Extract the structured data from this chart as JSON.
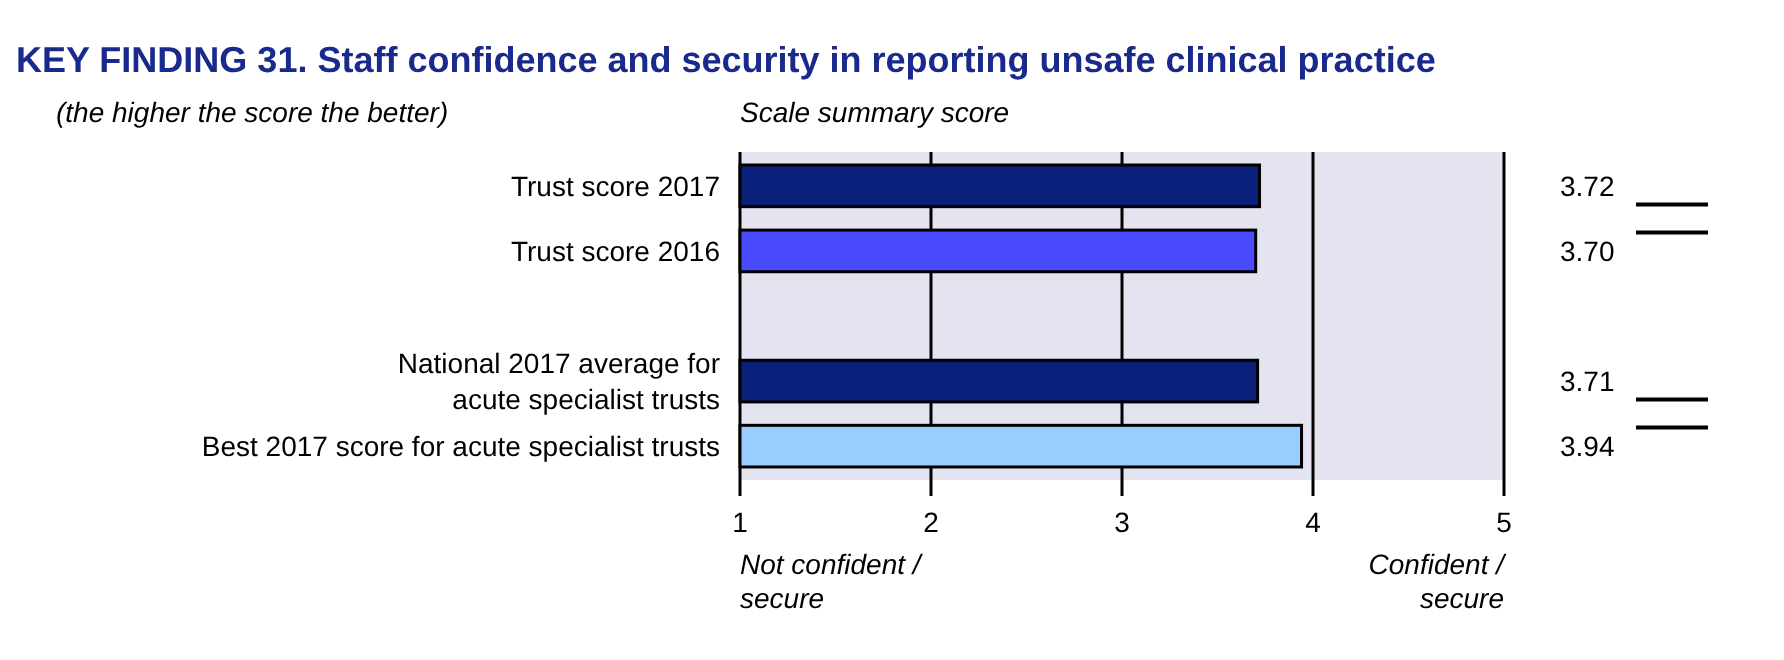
{
  "chart_data": {
    "type": "bar",
    "orientation": "horizontal",
    "title": "KEY FINDING 31. Staff confidence and security in reporting unsafe clinical practice",
    "subtitle": "(the higher the score the better)",
    "xlabel": "Scale summary score",
    "categories": [
      "Trust score 2017",
      "Trust score 2016",
      null,
      "National 2017 average for acute specialist trusts",
      "Best 2017 score for acute specialist trusts"
    ],
    "values": [
      3.72,
      3.7,
      null,
      3.71,
      3.94
    ],
    "colors": [
      "#0a1f7a",
      "#4a4aff",
      null,
      "#0a1f7a",
      "#99ccff"
    ],
    "value_labels": [
      "3.72",
      "3.70",
      null,
      "3.71",
      "3.94"
    ],
    "xlim": [
      1,
      5
    ],
    "xticks": [
      1,
      2,
      3,
      4,
      5
    ],
    "grid": "x",
    "annotations": [
      "Not confident / secure",
      "Confident / secure"
    ]
  }
}
